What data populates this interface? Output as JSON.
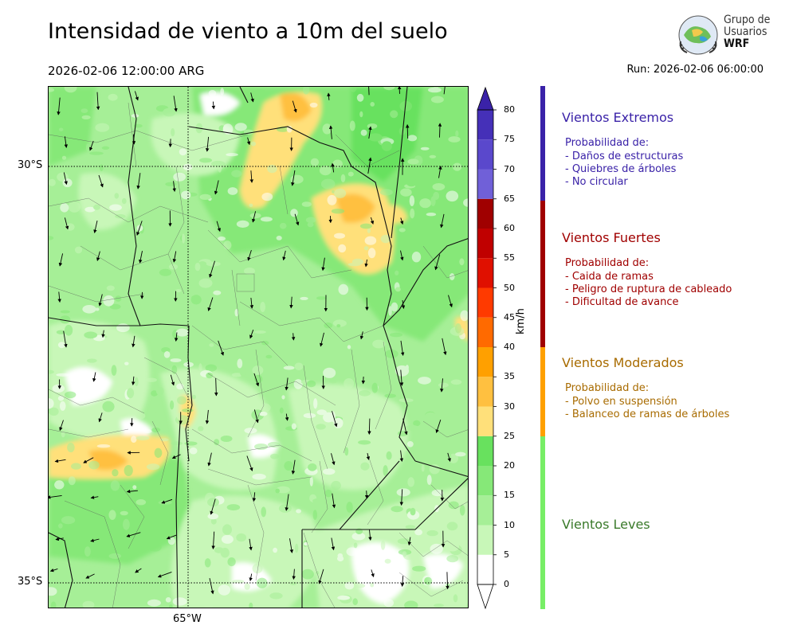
{
  "header": {
    "title": "Intensidad de viento a 10m del suelo",
    "valid_time": "2026-02-06 12:00:00 ARG",
    "run": "Run: 2026-02-06 06:00:00"
  },
  "logo": {
    "line1": "Grupo de",
    "line2": "Usuarios",
    "line3": "WRF"
  },
  "map": {
    "lat_labels": [
      "30°S",
      "35°S"
    ],
    "lon_labels": [
      "65°W"
    ]
  },
  "colorbar": {
    "unit": "km/h",
    "ticks": [
      "0",
      "5",
      "10",
      "15",
      "20",
      "25",
      "30",
      "35",
      "40",
      "45",
      "50",
      "55",
      "60",
      "65",
      "70",
      "75",
      "80"
    ],
    "colors": [
      "#ffffff",
      "#c8f7b8",
      "#a6ef97",
      "#86e878",
      "#68e15e",
      "#ffe07a",
      "#ffc040",
      "#ffa000",
      "#ff6a00",
      "#ff3a00",
      "#e01000",
      "#c00000",
      "#a00000",
      "#7060d8",
      "#5a48cc",
      "#4530b8",
      "#3a22a8"
    ]
  },
  "categories": [
    {
      "title": "Vientos Extremos",
      "color": "#3a22a8",
      "intro": "Probabilidad de:",
      "items": [
        "- Daños de estructuras",
        "- Quiebres de árboles",
        "- No circular"
      ]
    },
    {
      "title": "Vientos Fuertes",
      "color": "#a00000",
      "intro": "Probabilidad de:",
      "items": [
        "- Caida de ramas",
        "- Peligro de ruptura de cableado",
        "- Dificultad de avance"
      ]
    },
    {
      "title": "Vientos Moderados",
      "color": "#a86b00",
      "bar_color": "#ffa000",
      "intro": "Probabilidad de:",
      "items": [
        "- Polvo en suspensión",
        "- Balanceo de ramas de árboles"
      ]
    },
    {
      "title": "Vientos Leves",
      "color": "#3a7a2a",
      "bar_color": "#77ee66",
      "intro": "",
      "items": []
    }
  ]
}
